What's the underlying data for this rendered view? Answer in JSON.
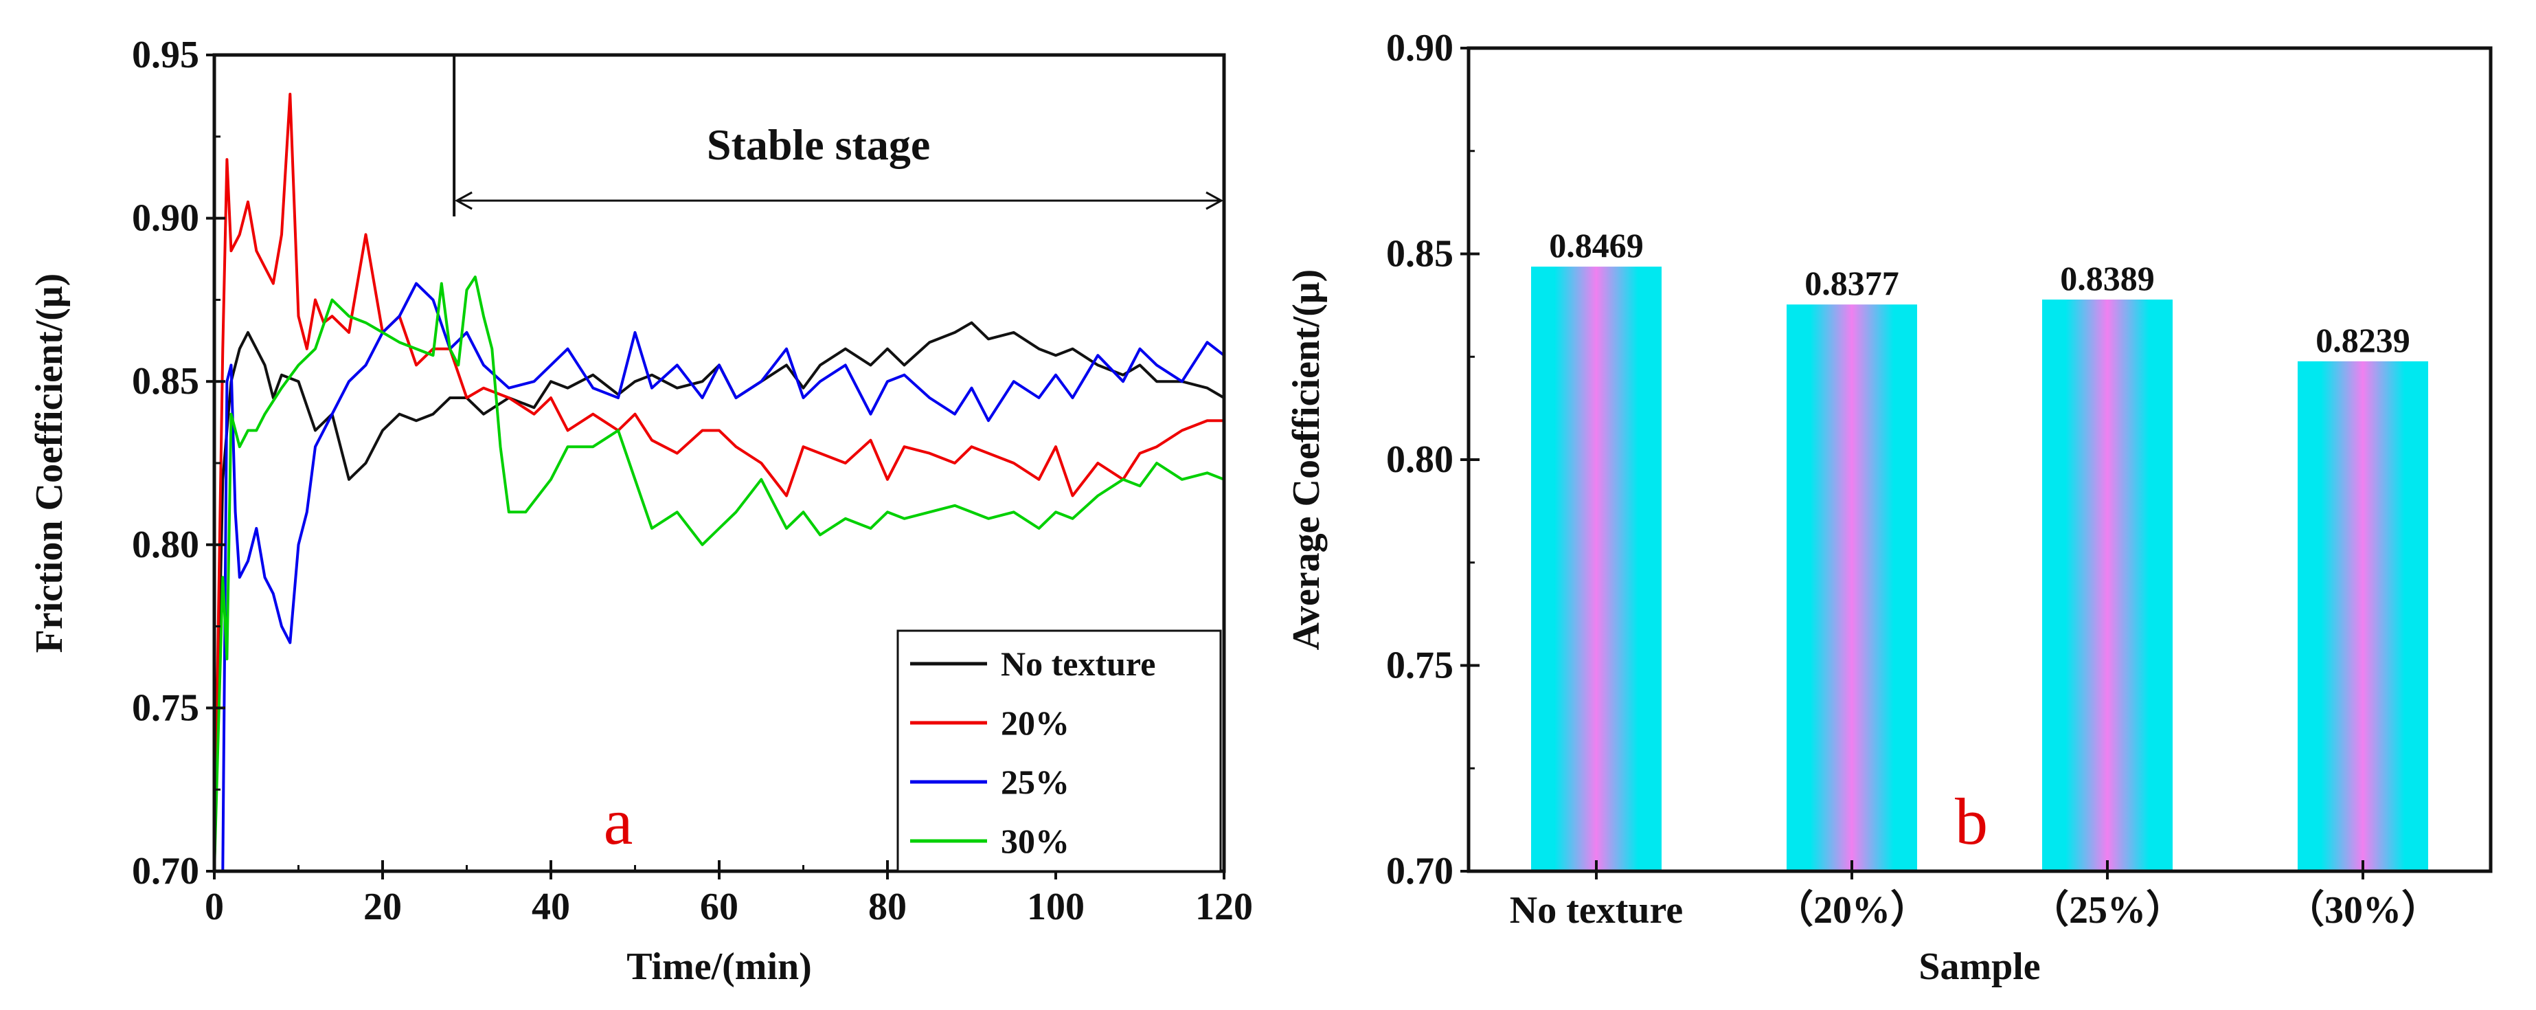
{
  "chart_data": [
    {
      "type": "line",
      "panel_label": "a",
      "xlabel": "Time/(min)",
      "ylabel": "Friction Coefficient/(μ)",
      "xlim": [
        0,
        120
      ],
      "ylim": [
        0.7,
        0.95
      ],
      "xticks": [
        "0",
        "20",
        "40",
        "60",
        "80",
        "100",
        "120"
      ],
      "yticks": [
        "0.70",
        "0.75",
        "0.80",
        "0.85",
        "0.90",
        "0.95"
      ],
      "annotation": {
        "text": "Stable stage",
        "x_start": 28.5,
        "x_end": 120
      },
      "legend_position": "bottom-right",
      "series": [
        {
          "name": "No texture",
          "color": "#111111",
          "x": [
            0,
            1,
            2,
            3,
            4,
            5,
            6,
            7,
            8,
            10,
            12,
            14,
            16,
            18,
            20,
            22,
            24,
            26,
            28,
            30,
            32,
            35,
            38,
            40,
            42,
            45,
            48,
            50,
            52,
            55,
            58,
            60,
            62,
            65,
            68,
            70,
            72,
            75,
            78,
            80,
            82,
            85,
            88,
            90,
            92,
            95,
            98,
            100,
            102,
            105,
            108,
            110,
            112,
            115,
            118,
            120
          ],
          "y": [
            0.7,
            0.82,
            0.85,
            0.86,
            0.865,
            0.86,
            0.855,
            0.845,
            0.852,
            0.85,
            0.835,
            0.84,
            0.82,
            0.825,
            0.835,
            0.84,
            0.838,
            0.84,
            0.845,
            0.845,
            0.84,
            0.845,
            0.842,
            0.85,
            0.848,
            0.852,
            0.846,
            0.85,
            0.852,
            0.848,
            0.85,
            0.855,
            0.845,
            0.85,
            0.855,
            0.848,
            0.855,
            0.86,
            0.855,
            0.86,
            0.855,
            0.862,
            0.865,
            0.868,
            0.863,
            0.865,
            0.86,
            0.858,
            0.86,
            0.855,
            0.852,
            0.855,
            0.85,
            0.85,
            0.848,
            0.845
          ]
        },
        {
          "name": "20%",
          "color": "#ee0000",
          "x": [
            0,
            1,
            1.5,
            2,
            3,
            4,
            5,
            6,
            7,
            8,
            9,
            10,
            11,
            12,
            13,
            14,
            16,
            18,
            20,
            22,
            24,
            26,
            28,
            30,
            32,
            35,
            38,
            40,
            42,
            45,
            48,
            50,
            52,
            55,
            58,
            60,
            62,
            65,
            68,
            70,
            72,
            75,
            78,
            80,
            82,
            85,
            88,
            90,
            92,
            95,
            98,
            100,
            102,
            105,
            108,
            110,
            112,
            115,
            118,
            120
          ],
          "y": [
            0.7,
            0.86,
            0.918,
            0.89,
            0.895,
            0.905,
            0.89,
            0.885,
            0.88,
            0.895,
            0.938,
            0.87,
            0.86,
            0.875,
            0.868,
            0.87,
            0.865,
            0.895,
            0.865,
            0.87,
            0.855,
            0.86,
            0.86,
            0.845,
            0.848,
            0.845,
            0.84,
            0.845,
            0.835,
            0.84,
            0.835,
            0.84,
            0.832,
            0.828,
            0.835,
            0.835,
            0.83,
            0.825,
            0.815,
            0.83,
            0.828,
            0.825,
            0.832,
            0.82,
            0.83,
            0.828,
            0.825,
            0.83,
            0.828,
            0.825,
            0.82,
            0.83,
            0.815,
            0.825,
            0.82,
            0.828,
            0.83,
            0.835,
            0.838,
            0.838
          ]
        },
        {
          "name": "25%",
          "color": "#0000ee",
          "x": [
            0,
            1,
            1.5,
            2,
            2.5,
            3,
            4,
            5,
            6,
            7,
            8,
            9,
            10,
            11,
            12,
            14,
            16,
            18,
            20,
            22,
            24,
            26,
            28,
            30,
            32,
            35,
            38,
            40,
            42,
            45,
            48,
            50,
            52,
            55,
            58,
            60,
            62,
            65,
            68,
            70,
            72,
            75,
            78,
            80,
            82,
            85,
            88,
            90,
            92,
            95,
            98,
            100,
            102,
            105,
            108,
            110,
            112,
            115,
            118,
            120
          ],
          "y": [
            0.7,
            0.7,
            0.85,
            0.855,
            0.81,
            0.79,
            0.795,
            0.805,
            0.79,
            0.785,
            0.775,
            0.77,
            0.8,
            0.81,
            0.83,
            0.84,
            0.85,
            0.855,
            0.865,
            0.87,
            0.88,
            0.875,
            0.86,
            0.865,
            0.855,
            0.848,
            0.85,
            0.855,
            0.86,
            0.848,
            0.845,
            0.865,
            0.848,
            0.855,
            0.845,
            0.855,
            0.845,
            0.85,
            0.86,
            0.845,
            0.85,
            0.855,
            0.84,
            0.85,
            0.852,
            0.845,
            0.84,
            0.848,
            0.838,
            0.85,
            0.845,
            0.852,
            0.845,
            0.858,
            0.85,
            0.86,
            0.855,
            0.85,
            0.862,
            0.858
          ]
        },
        {
          "name": "30%",
          "color": "#00d000",
          "x": [
            0,
            1,
            1.5,
            2,
            3,
            4,
            5,
            6,
            8,
            10,
            12,
            14,
            16,
            18,
            20,
            22,
            24,
            26,
            27,
            28,
            29,
            30,
            31,
            32,
            33,
            34,
            35,
            37,
            40,
            42,
            45,
            48,
            50,
            52,
            55,
            58,
            60,
            62,
            65,
            68,
            70,
            72,
            75,
            78,
            80,
            82,
            85,
            88,
            90,
            92,
            95,
            98,
            100,
            102,
            105,
            108,
            110,
            112,
            115,
            118,
            120
          ],
          "y": [
            0.7,
            0.79,
            0.765,
            0.84,
            0.83,
            0.835,
            0.835,
            0.84,
            0.848,
            0.855,
            0.86,
            0.875,
            0.87,
            0.868,
            0.865,
            0.862,
            0.86,
            0.858,
            0.88,
            0.86,
            0.855,
            0.878,
            0.882,
            0.87,
            0.86,
            0.83,
            0.81,
            0.81,
            0.82,
            0.83,
            0.83,
            0.835,
            0.82,
            0.805,
            0.81,
            0.8,
            0.805,
            0.81,
            0.82,
            0.805,
            0.81,
            0.803,
            0.808,
            0.805,
            0.81,
            0.808,
            0.81,
            0.812,
            0.81,
            0.808,
            0.81,
            0.805,
            0.81,
            0.808,
            0.815,
            0.82,
            0.818,
            0.825,
            0.82,
            0.822,
            0.82
          ]
        }
      ]
    },
    {
      "type": "bar",
      "panel_label": "b",
      "xlabel": "Sample",
      "ylabel": "Average Coefficient/(μ)",
      "ylim": [
        0.7,
        0.9
      ],
      "yticks": [
        "0.70",
        "0.75",
        "0.80",
        "0.85",
        "0.90"
      ],
      "categories": [
        "No texture",
        "（20%）",
        "（25%）",
        "（30%）"
      ],
      "values": [
        0.8469,
        0.8377,
        0.8389,
        0.8239
      ],
      "value_labels": [
        "0.8469",
        "0.8377",
        "0.8389",
        "0.8239"
      ],
      "bar_colors": {
        "edge": "#00e8f0",
        "center": "#f080f0"
      }
    }
  ]
}
